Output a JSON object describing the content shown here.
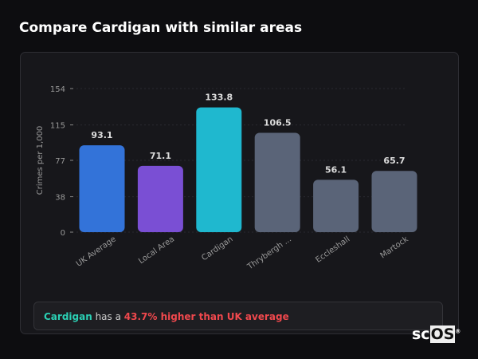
{
  "title": "Compare Cardigan with similar areas",
  "chart_data": {
    "type": "bar",
    "title": "",
    "xlabel": "",
    "ylabel": "Crimes per 1,000",
    "ylim": [
      0,
      154
    ],
    "yticks": [
      0,
      38,
      77,
      115,
      154
    ],
    "grid": true,
    "categories": [
      "UK Average",
      "Local Area",
      "Cardigan",
      "Thrybergh ...",
      "Eccleshall",
      "Martock"
    ],
    "values": [
      93.1,
      71.1,
      133.8,
      106.5,
      56.1,
      65.7
    ],
    "value_labels": [
      "93.1",
      "71.1",
      "133.8",
      "106.5",
      "56.1",
      "65.7"
    ],
    "colors": [
      "#3373d9",
      "#7a4fd4",
      "#1fb8cf",
      "#5a6478",
      "#5a6478",
      "#5a6478"
    ]
  },
  "summary": {
    "area": "Cardigan",
    "middle": " has a ",
    "highlight": "43.7% higher than UK average"
  },
  "logo": {
    "text_sc": "sc",
    "text_os": "OS",
    "mark": "®"
  }
}
